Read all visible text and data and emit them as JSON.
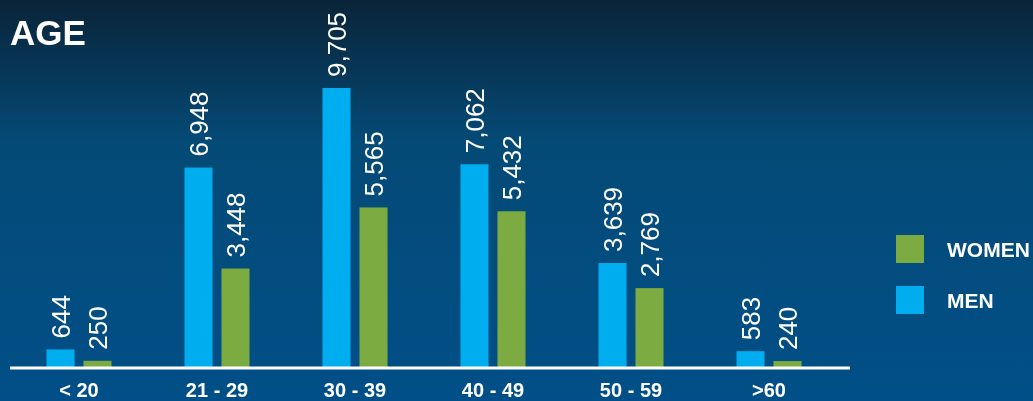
{
  "chart_data": {
    "type": "bar",
    "title": "AGE",
    "categories": [
      "< 20",
      "21 - 29",
      "30 - 39",
      "40 - 49",
      "50 - 59",
      ">60"
    ],
    "series": [
      {
        "name": "MEN",
        "color": "#00aeef",
        "values": [
          644,
          6948,
          9705,
          7062,
          3639,
          583
        ],
        "value_labels": [
          "644",
          "6,948",
          "9,705",
          "7,062",
          "3,639",
          "583"
        ]
      },
      {
        "name": "WOMEN",
        "color": "#7cac41",
        "values": [
          250,
          3448,
          5565,
          5432,
          2769,
          240
        ],
        "value_labels": [
          "250",
          "3,448",
          "5,565",
          "5,432",
          "2,769",
          "240"
        ]
      }
    ],
    "legend": "right",
    "tick_labels": "x"
  }
}
